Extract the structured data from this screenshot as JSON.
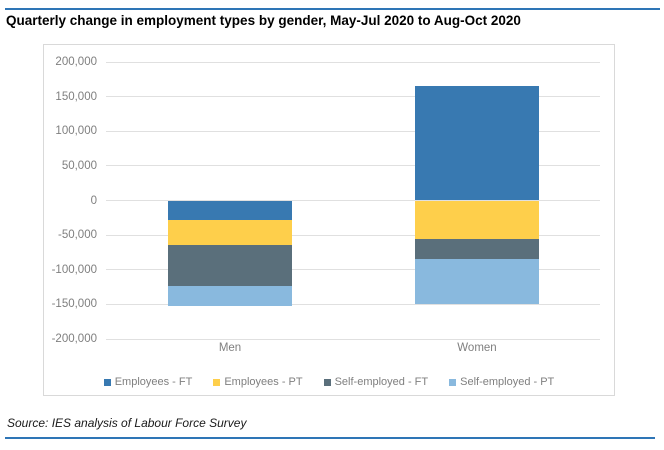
{
  "page": {
    "title": "Quarterly change in employment types by gender, May-Jul 2020 to Aug-Oct 2020",
    "source": "Source: IES analysis of Labour Force Survey",
    "accent_color": "#2E75B6",
    "gridline_color": "#E0E0E0",
    "axis_text_color": "#7F7F7F"
  },
  "chart_data": {
    "type": "bar",
    "stacked": true,
    "orientation": "vertical",
    "title": "",
    "xlabel": "",
    "ylabel": "",
    "categories": [
      "Men",
      "Women"
    ],
    "series": [
      {
        "name": "Employees - FT",
        "color": "#3879B1",
        "values": [
          -28000,
          165000
        ]
      },
      {
        "name": "Employees - PT",
        "color": "#FECF4B",
        "values": [
          -36000,
          -56000
        ]
      },
      {
        "name": "Self-employed - FT",
        "color": "#5A6F7B",
        "values": [
          -59000,
          -29000
        ]
      },
      {
        "name": "Self-employed - PT",
        "color": "#89B9DE",
        "values": [
          -30000,
          -64000
        ]
      }
    ],
    "ylim": [
      -200000,
      200000
    ],
    "ytick_step": 50000,
    "ytick_labels": [
      "200,000",
      "150,000",
      "100,000",
      "50,000",
      "0",
      "-50,000",
      "-100,000",
      "-150,000",
      "-200,000"
    ],
    "grid": true,
    "legend_position": "bottom"
  }
}
